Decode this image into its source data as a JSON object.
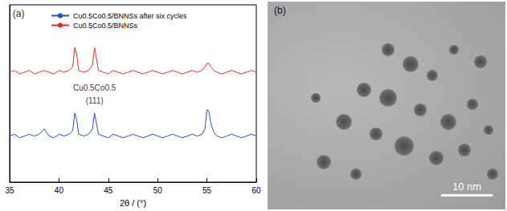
{
  "chart_data": {
    "type": "line",
    "x_label": "2θ / (°)",
    "x": [
      35,
      35.5,
      36,
      36.5,
      37,
      37.5,
      38,
      38.5,
      39,
      39.5,
      40,
      40.5,
      41,
      41.4,
      41.6,
      41.8,
      42,
      42.5,
      43,
      43.4,
      43.6,
      43.8,
      44,
      44.5,
      45,
      45.5,
      46,
      46.5,
      47,
      47.5,
      48,
      48.5,
      49,
      49.5,
      50,
      50.5,
      51,
      51.5,
      52,
      52.5,
      53,
      53.5,
      54,
      54.5,
      54.8,
      55,
      55.2,
      55.4,
      55.7,
      56,
      56.5,
      57,
      57.5,
      58,
      58.5,
      59,
      59.5,
      60
    ],
    "series": [
      {
        "name": "Cu0.5Co0.5/BNNSs after six cycles",
        "color": "#2a4cc9",
        "values": [
          26,
          27,
          25,
          26,
          27,
          26,
          27,
          30,
          26,
          25,
          27,
          26,
          27,
          29,
          39,
          35,
          27,
          26,
          27,
          30,
          39,
          33,
          27,
          26,
          25,
          27,
          26,
          25,
          26,
          27,
          26,
          25,
          26,
          27,
          26,
          25,
          26,
          27,
          26,
          25,
          26,
          27,
          26,
          27,
          30,
          41,
          40,
          33,
          28,
          26,
          25,
          26,
          27,
          26,
          25,
          26,
          27,
          26
        ]
      },
      {
        "name": "Cu0.5Co0.5/BNNSs",
        "color": "#e32b2b",
        "values": [
          62,
          63,
          61,
          62,
          63,
          61,
          62,
          63,
          62,
          61,
          63,
          62,
          63,
          65,
          76,
          72,
          63,
          62,
          63,
          66,
          76,
          70,
          63,
          62,
          61,
          63,
          62,
          61,
          62,
          63,
          62,
          61,
          62,
          63,
          62,
          61,
          62,
          63,
          62,
          61,
          62,
          63,
          62,
          63,
          65,
          67,
          67,
          65,
          63,
          62,
          61,
          62,
          63,
          62,
          61,
          62,
          63,
          62
        ]
      }
    ],
    "annotations": [
      {
        "text": "(a)",
        "x": 35.9,
        "y": 95
      },
      {
        "text": "Cu0.5Co0.5",
        "x": 43.6,
        "y": 53
      },
      {
        "text": "(111)",
        "x": 43.6,
        "y": 46
      }
    ],
    "xlim": [
      35,
      60
    ],
    "xticks": [
      35,
      40,
      45,
      50,
      55,
      60
    ],
    "ylim": [
      0,
      100
    ],
    "yticks": [],
    "tick_labels": "x",
    "grid": false,
    "legend": "top-left"
  },
  "image_panel": {
    "label": "(b)",
    "scale_bar": "10 nm"
  }
}
